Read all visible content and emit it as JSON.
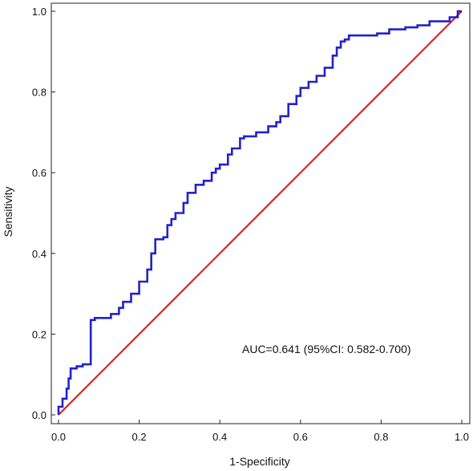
{
  "chart_data": {
    "type": "line",
    "title": "",
    "xlabel": "1-Specificity",
    "ylabel": "Sensitivity",
    "xlim": [
      0.0,
      1.0
    ],
    "ylim": [
      0.0,
      1.0
    ],
    "xticks": [
      "0.0",
      "0.2",
      "0.4",
      "0.6",
      "0.8",
      "1.0"
    ],
    "yticks": [
      "0.0",
      "0.2",
      "0.4",
      "0.6",
      "0.8",
      "1.0"
    ],
    "grid": false,
    "annotation": "AUC=0.641 (95%CI: 0.582-0.700)",
    "series": [
      {
        "color": "#2222cc",
        "x": [
          0.0,
          0.0,
          0.01,
          0.01,
          0.02,
          0.02,
          0.025,
          0.025,
          0.03,
          0.03,
          0.045,
          0.045,
          0.06,
          0.06,
          0.08,
          0.08,
          0.09,
          0.09,
          0.13,
          0.13,
          0.15,
          0.15,
          0.16,
          0.16,
          0.18,
          0.18,
          0.2,
          0.2,
          0.22,
          0.22,
          0.23,
          0.23,
          0.24,
          0.24,
          0.26,
          0.26,
          0.27,
          0.27,
          0.28,
          0.28,
          0.29,
          0.29,
          0.31,
          0.31,
          0.32,
          0.32,
          0.34,
          0.34,
          0.36,
          0.36,
          0.38,
          0.38,
          0.39,
          0.39,
          0.4,
          0.4,
          0.42,
          0.42,
          0.43,
          0.43,
          0.45,
          0.45,
          0.46,
          0.46,
          0.49,
          0.49,
          0.52,
          0.52,
          0.54,
          0.54,
          0.55,
          0.55,
          0.57,
          0.57,
          0.59,
          0.59,
          0.6,
          0.6,
          0.62,
          0.62,
          0.64,
          0.64,
          0.66,
          0.66,
          0.68,
          0.68,
          0.69,
          0.69,
          0.7,
          0.7,
          0.71,
          0.71,
          0.72,
          0.72,
          0.79,
          0.79,
          0.82,
          0.82,
          0.86,
          0.86,
          0.89,
          0.89,
          0.92,
          0.92,
          0.97,
          0.97,
          0.99,
          0.99,
          1.0
        ],
        "y": [
          0.0,
          0.02,
          0.02,
          0.04,
          0.04,
          0.065,
          0.065,
          0.09,
          0.09,
          0.115,
          0.115,
          0.12,
          0.12,
          0.125,
          0.125,
          0.235,
          0.235,
          0.24,
          0.24,
          0.25,
          0.25,
          0.265,
          0.265,
          0.28,
          0.28,
          0.3,
          0.3,
          0.33,
          0.33,
          0.36,
          0.36,
          0.4,
          0.4,
          0.435,
          0.435,
          0.44,
          0.44,
          0.47,
          0.47,
          0.485,
          0.485,
          0.5,
          0.5,
          0.525,
          0.525,
          0.55,
          0.55,
          0.57,
          0.57,
          0.58,
          0.58,
          0.6,
          0.6,
          0.61,
          0.61,
          0.62,
          0.62,
          0.645,
          0.645,
          0.66,
          0.66,
          0.685,
          0.685,
          0.69,
          0.69,
          0.7,
          0.7,
          0.715,
          0.715,
          0.725,
          0.725,
          0.74,
          0.74,
          0.77,
          0.77,
          0.79,
          0.79,
          0.81,
          0.81,
          0.825,
          0.825,
          0.84,
          0.84,
          0.86,
          0.86,
          0.89,
          0.89,
          0.91,
          0.91,
          0.925,
          0.925,
          0.93,
          0.93,
          0.94,
          0.94,
          0.945,
          0.945,
          0.955,
          0.955,
          0.96,
          0.96,
          0.965,
          0.965,
          0.975,
          0.975,
          0.985,
          0.985,
          1.0,
          1.0
        ]
      },
      {
        "color": "#dd2222",
        "x": [
          0.0,
          1.0
        ],
        "y": [
          0.0,
          1.0
        ]
      }
    ]
  }
}
